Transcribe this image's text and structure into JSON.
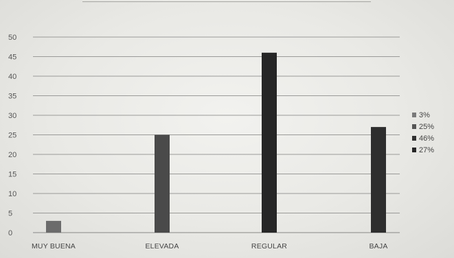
{
  "chart_data": {
    "type": "bar",
    "title": "",
    "xlabel": "",
    "ylabel": "",
    "ylim": [
      0,
      50
    ],
    "yticks": [
      0,
      5,
      10,
      15,
      20,
      25,
      30,
      35,
      40,
      45,
      50
    ],
    "ytick_labels": [
      "0",
      "5",
      "10",
      "15",
      "20",
      "25",
      "30",
      "35",
      "40",
      "45",
      "50"
    ],
    "categories": [
      "MUY BUENA",
      "ELEVADA",
      "REGULAR",
      "BAJA"
    ],
    "values": [
      3,
      25,
      46,
      27
    ],
    "grid": true,
    "legend": {
      "placement": "right",
      "entries": [
        "3%",
        "25%",
        "46%",
        "27%"
      ]
    },
    "colors": {
      "bars": [
        "#6b6b6b",
        "#4a4a4a",
        "#262626",
        "#2e2e2e"
      ],
      "legend_markers": [
        "#7a7a7a",
        "#555555",
        "#303030",
        "#262626"
      ],
      "grid": "#9a9a98",
      "text": "#555555"
    }
  }
}
